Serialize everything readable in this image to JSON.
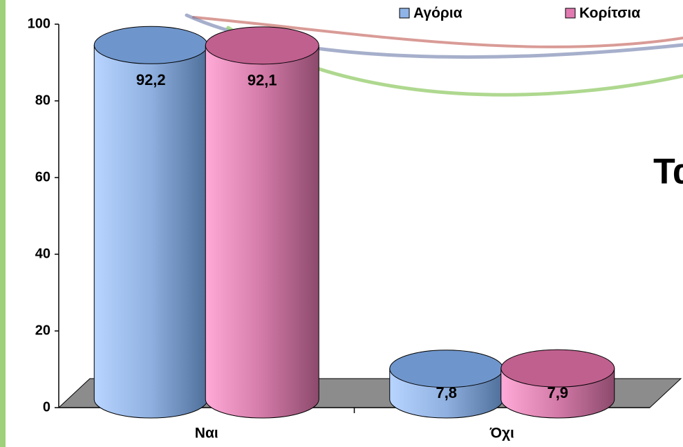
{
  "chart_data": {
    "type": "bar",
    "annotation": "Τα",
    "categories": [
      "Ναι",
      "Όχι"
    ],
    "series": [
      {
        "name": "Αγόρια",
        "color": "#8fb4e8",
        "values": [
          92.2,
          7.8
        ],
        "value_labels": [
          "92,2",
          "7,8"
        ]
      },
      {
        "name": "Κορίτσια",
        "color": "#e07ab0",
        "values": [
          92.1,
          7.9
        ],
        "value_labels": [
          "92,1",
          "7,9"
        ]
      }
    ],
    "ylim": [
      0,
      100
    ],
    "yticks": [
      0,
      20,
      40,
      60,
      80,
      100
    ],
    "legend": "top-right"
  }
}
